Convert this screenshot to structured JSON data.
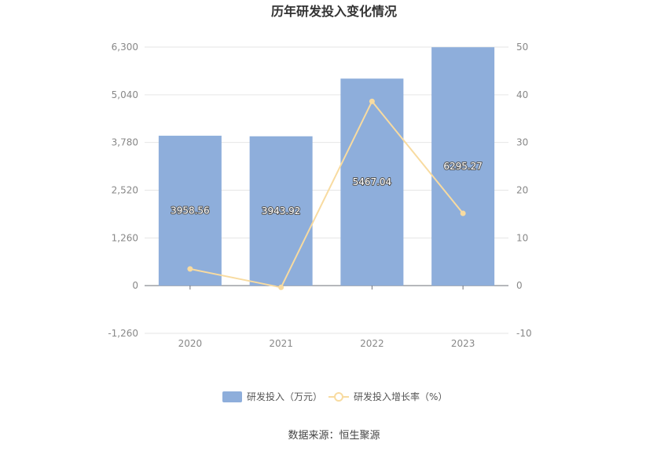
{
  "chart_data": {
    "type": "bar",
    "title": "历年研发投入变化情况",
    "categories": [
      "2020",
      "2021",
      "2022",
      "2023"
    ],
    "series": [
      {
        "name": "研发投入（万元）",
        "type": "bar",
        "axis": "left",
        "color": "#8eaedb",
        "values": [
          3958.56,
          3943.92,
          5467.04,
          6295.27
        ],
        "labels": [
          "3958.56",
          "3943.92",
          "5467.04",
          "6295.27"
        ]
      },
      {
        "name": "研发投入增长率（%）",
        "type": "line",
        "axis": "right",
        "color": "#f8dba0",
        "values": [
          3.5,
          -0.37,
          38.62,
          15.15
        ]
      }
    ],
    "left_axis": {
      "ylim": [
        -1260,
        6300
      ],
      "ticks": [
        -1260,
        0,
        1260,
        2520,
        3780,
        5040,
        6300
      ],
      "tick_labels": [
        "-1,260",
        "0",
        "1,260",
        "2,520",
        "3,780",
        "5,040",
        "6,300"
      ]
    },
    "right_axis": {
      "ylim": [
        -10,
        50
      ],
      "ticks": [
        -10,
        0,
        10,
        20,
        30,
        40,
        50
      ],
      "tick_labels": [
        "-10",
        "0",
        "10",
        "20",
        "30",
        "40",
        "50"
      ]
    },
    "grid": true,
    "legend_position": "bottom"
  },
  "source": "数据来源：恒生聚源"
}
